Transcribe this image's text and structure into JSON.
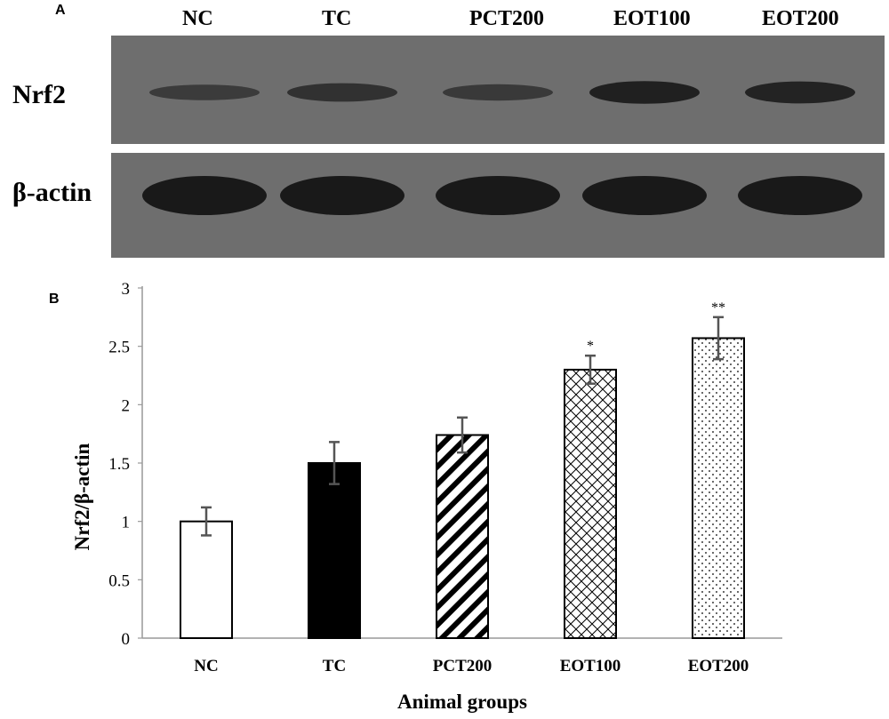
{
  "panel_a": {
    "letter": "A",
    "lane_labels": [
      "NC",
      "TC",
      "PCT200",
      "EOT100",
      "EOT200"
    ],
    "rows": [
      {
        "label": "Nrf2",
        "band_intensity": [
          0.35,
          0.55,
          0.4,
          0.85,
          0.8
        ]
      },
      {
        "label": "β-actin",
        "band_intensity": [
          1,
          1,
          1,
          1,
          1
        ]
      }
    ],
    "colors": {
      "membrane": "#6e6e6e",
      "band": "#141414"
    }
  },
  "panel_b": {
    "letter": "B"
  },
  "chart_data": {
    "type": "bar",
    "categories": [
      "NC",
      "TC",
      "PCT200",
      "EOT100",
      "EOT200"
    ],
    "values": [
      1.0,
      1.5,
      1.74,
      2.3,
      2.57
    ],
    "errors": [
      0.12,
      0.18,
      0.15,
      0.12,
      0.18
    ],
    "significance": [
      "",
      "",
      "",
      "*",
      "**"
    ],
    "patterns": [
      "white",
      "solid-black",
      "diagonal-stripes",
      "crosshatch",
      "dots"
    ],
    "xlabel": "Animal groups",
    "ylabel": "Nrf2/β-actin",
    "ylim": [
      0,
      3
    ],
    "yticks": [
      "0",
      "0.5",
      "1",
      "1.5",
      "2",
      "2.5",
      "3"
    ],
    "grid": false,
    "legend": "none",
    "colors": {
      "bar_edge": "#000000",
      "error_bar": "#555555",
      "axis": "#999999"
    }
  }
}
